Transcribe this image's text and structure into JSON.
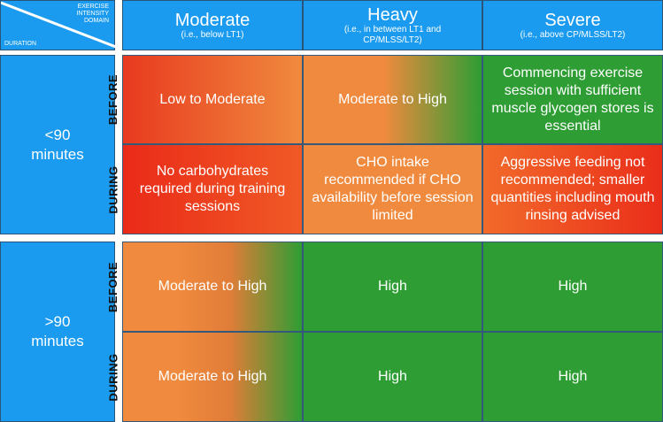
{
  "corner": {
    "top": "EXERCISE INTENSITY DOMAIN",
    "bottom": "DURATION"
  },
  "columns": [
    {
      "title": "Moderate",
      "subtitle": "(i.e., below LT1)"
    },
    {
      "title": "Heavy",
      "subtitle": "(i.e., in between LT1 and CP/MLSS/LT2)"
    },
    {
      "title": "Severe",
      "subtitle": "(i.e., above CP/MLSS/LT2)"
    }
  ],
  "rows": [
    {
      "label": "<90 minutes",
      "phases": [
        {
          "label": "BEFORE",
          "cells": [
            "Low to Moderate",
            "Moderate to High",
            "Commencing exercise session with sufficient muscle glycogen stores is essential"
          ]
        },
        {
          "label": "DURING",
          "cells": [
            "No carbohydrates required during training sessions",
            "CHO intake recommended if CHO availability before session limited",
            "Aggressive feeding not recommended; smaller quantities including mouth rinsing advised"
          ]
        }
      ]
    },
    {
      "label": ">90 minutes",
      "phases": [
        {
          "label": "BEFORE",
          "cells": [
            "Moderate to High",
            "High",
            "High"
          ]
        },
        {
          "label": "DURING",
          "cells": [
            "Moderate to High",
            "High",
            "High"
          ]
        }
      ]
    }
  ]
}
